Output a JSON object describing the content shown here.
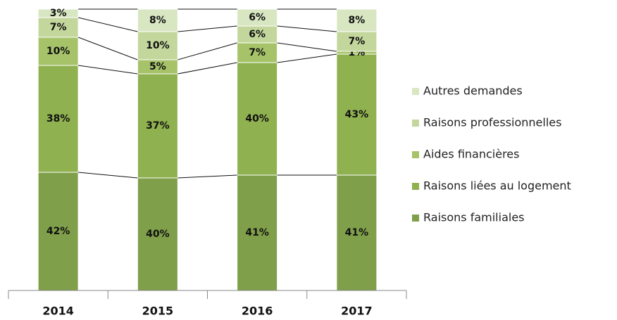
{
  "chart_data": {
    "type": "stacked-bar",
    "categories": [
      "2014",
      "2015",
      "2016",
      "2017"
    ],
    "series": [
      {
        "name": "Raisons familiales",
        "color": "#7f9f4a",
        "values": [
          42,
          40,
          41,
          41
        ],
        "value_labels": [
          "42%",
          "40%",
          "41%",
          "41%"
        ]
      },
      {
        "name": "Raisons liées au logement",
        "color": "#8fb14f",
        "values": [
          38,
          37,
          40,
          43
        ],
        "value_labels": [
          "38%",
          "37%",
          "40%",
          "43%"
        ]
      },
      {
        "name": "Aides financières",
        "color": "#a6c36a",
        "values": [
          10,
          5,
          7,
          1
        ],
        "value_labels": [
          "10%",
          "5%",
          "7%",
          "1%"
        ]
      },
      {
        "name": "Raisons professionnelles",
        "color": "#c3d79d",
        "values": [
          7,
          10,
          6,
          7
        ],
        "value_labels": [
          "7%",
          "10%",
          "6%",
          "7%"
        ]
      },
      {
        "name": "Autres demandes",
        "color": "#d9e6c2",
        "values": [
          3,
          8,
          6,
          8
        ],
        "value_labels": [
          "3%",
          "8%",
          "6%",
          "8%"
        ]
      }
    ],
    "legend": "right"
  }
}
